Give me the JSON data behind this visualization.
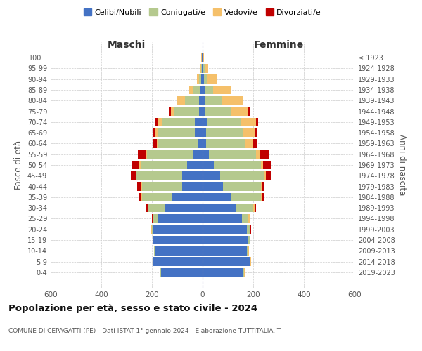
{
  "age_groups": [
    "0-4",
    "5-9",
    "10-14",
    "15-19",
    "20-24",
    "25-29",
    "30-34",
    "35-39",
    "40-44",
    "45-49",
    "50-54",
    "55-59",
    "60-64",
    "65-69",
    "70-74",
    "75-79",
    "80-84",
    "85-89",
    "90-94",
    "95-99",
    "100+"
  ],
  "birth_years": [
    "2019-2023",
    "2014-2018",
    "2009-2013",
    "2004-2008",
    "1999-2003",
    "1994-1998",
    "1989-1993",
    "1984-1988",
    "1979-1983",
    "1974-1978",
    "1969-1973",
    "1964-1968",
    "1959-1963",
    "1954-1958",
    "1949-1953",
    "1944-1948",
    "1939-1943",
    "1934-1938",
    "1929-1933",
    "1924-1928",
    "≤ 1923"
  ],
  "maschi": {
    "celibi": [
      165,
      195,
      190,
      195,
      195,
      175,
      150,
      120,
      80,
      80,
      60,
      35,
      20,
      30,
      30,
      15,
      15,
      8,
      5,
      2,
      2
    ],
    "coniugati": [
      2,
      2,
      2,
      2,
      5,
      20,
      65,
      120,
      160,
      180,
      185,
      185,
      155,
      145,
      130,
      95,
      55,
      30,
      8,
      3,
      2
    ],
    "vedovi": [
      1,
      1,
      1,
      1,
      2,
      2,
      2,
      2,
      2,
      2,
      5,
      5,
      5,
      10,
      15,
      15,
      30,
      15,
      8,
      2,
      1
    ],
    "divorziati": [
      0,
      0,
      0,
      0,
      2,
      2,
      5,
      10,
      15,
      20,
      30,
      30,
      15,
      10,
      10,
      8,
      0,
      0,
      0,
      0,
      0
    ]
  },
  "femmine": {
    "nubili": [
      160,
      185,
      175,
      180,
      175,
      155,
      130,
      110,
      80,
      70,
      45,
      25,
      15,
      15,
      20,
      10,
      12,
      8,
      5,
      2,
      2
    ],
    "coniugate": [
      5,
      5,
      5,
      5,
      10,
      25,
      70,
      120,
      150,
      175,
      185,
      185,
      155,
      145,
      130,
      105,
      65,
      35,
      15,
      5,
      2
    ],
    "vedove": [
      2,
      2,
      2,
      2,
      5,
      5,
      5,
      5,
      5,
      5,
      10,
      15,
      30,
      45,
      60,
      65,
      80,
      70,
      35,
      15,
      2
    ],
    "divorziate": [
      0,
      0,
      0,
      0,
      2,
      2,
      5,
      8,
      10,
      20,
      30,
      35,
      15,
      10,
      10,
      10,
      5,
      2,
      0,
      0,
      0
    ]
  },
  "colors": {
    "celibi": "#4472c4",
    "coniugati": "#b5c98e",
    "vedovi": "#f5c06a",
    "divorziati": "#c00000"
  },
  "legend_labels": [
    "Celibi/Nubili",
    "Coniugati/e",
    "Vedovi/e",
    "Divorziati/e"
  ],
  "legend_colors": [
    "#4472c4",
    "#b5c98e",
    "#f5c06a",
    "#c00000"
  ],
  "title": "Popolazione per età, sesso e stato civile - 2024",
  "subtitle": "COMUNE DI CEPAGATTI (PE) - Dati ISTAT 1° gennaio 2024 - Elaborazione TUTTITALIA.IT",
  "label_maschi": "Maschi",
  "label_femmine": "Femmine",
  "ylabel_left": "Fasce di età",
  "ylabel_right": "Anni di nascita",
  "xlim": 600,
  "background_color": "#ffffff",
  "grid_color": "#cccccc"
}
